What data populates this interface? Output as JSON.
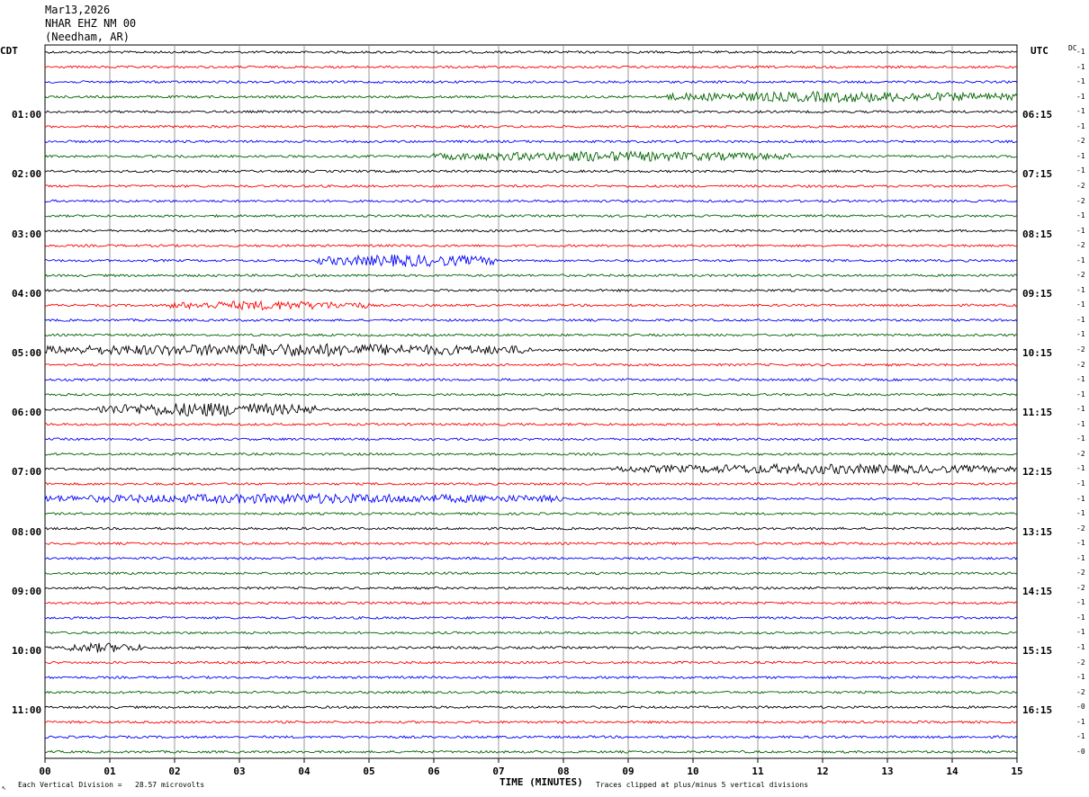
{
  "header": {
    "date": "Mar13,2026",
    "station": "NHAR EHZ NM 00",
    "location": "(Needham, AR)"
  },
  "left_zone": "CDT",
  "right_zone": "UTC",
  "dc_label": "DC",
  "footer": {
    "left_mark": "↖",
    "scale_note": "Each Vertical Division =   28.57 microvolts",
    "xlabel": "TIME (MINUTES)",
    "clip_note": "Traces clipped at plus/minus 5 vertical divisions"
  },
  "colors": {
    "trace_cycle": [
      "#000000",
      "#ff0000",
      "#0000ff",
      "#006400"
    ],
    "grid": "#808080"
  },
  "chart_data": {
    "type": "line",
    "title": "Mar13,2026",
    "xlabel": "TIME (MINUTES)",
    "xlim": [
      0,
      15
    ],
    "x_ticks": [
      "00",
      "01",
      "02",
      "03",
      "04",
      "05",
      "06",
      "07",
      "08",
      "09",
      "10",
      "11",
      "12",
      "13",
      "14",
      "15"
    ],
    "trace_count": 48,
    "minutes_per_trace": 15,
    "start_cdt": "00:15",
    "left_time_labels": [
      {
        "trace": 4,
        "text": "01:00"
      },
      {
        "trace": 8,
        "text": "02:00"
      },
      {
        "trace": 12,
        "text": "03:00"
      },
      {
        "trace": 16,
        "text": "04:00"
      },
      {
        "trace": 20,
        "text": "05:00"
      },
      {
        "trace": 24,
        "text": "06:00"
      },
      {
        "trace": 28,
        "text": "07:00"
      },
      {
        "trace": 32,
        "text": "08:00"
      },
      {
        "trace": 36,
        "text": "09:00"
      },
      {
        "trace": 40,
        "text": "10:00"
      },
      {
        "trace": 44,
        "text": "11:00"
      }
    ],
    "right_time_labels": [
      {
        "trace": 4,
        "text": "06:15"
      },
      {
        "trace": 8,
        "text": "07:15"
      },
      {
        "trace": 12,
        "text": "08:15"
      },
      {
        "trace": 16,
        "text": "09:15"
      },
      {
        "trace": 20,
        "text": "10:15"
      },
      {
        "trace": 24,
        "text": "11:15"
      },
      {
        "trace": 28,
        "text": "12:15"
      },
      {
        "trace": 32,
        "text": "13:15"
      },
      {
        "trace": 36,
        "text": "14:15"
      },
      {
        "trace": 40,
        "text": "15:15"
      },
      {
        "trace": 44,
        "text": "16:15"
      }
    ],
    "dc_offsets": [
      "-1",
      "-1",
      "-1",
      "-1",
      "-1",
      "-1",
      "-2",
      "-1",
      "-1",
      "-2",
      "-2",
      "-1",
      "-1",
      "-2",
      "-1",
      "-2",
      "-1",
      "-1",
      "-1",
      "-1",
      "-2",
      "-2",
      "-1",
      "-1",
      "-1",
      "-1",
      "-1",
      "-2",
      "-1",
      "-1",
      "-1",
      "-1",
      "-2",
      "-1",
      "-1",
      "-2",
      "-2",
      "-1",
      "-1",
      "-1",
      "-1",
      "-2",
      "-1",
      "-2",
      "-0",
      "-1",
      "-1",
      "-0"
    ],
    "ylabel": "",
    "scale_microvolts_per_division": 28.57,
    "clip_divisions": 5,
    "activity_bursts": [
      {
        "trace": 3,
        "from_min": 9.5,
        "to_min": 15,
        "amp": 2.2
      },
      {
        "trace": 7,
        "from_min": 6.0,
        "to_min": 11.5,
        "amp": 2.0
      },
      {
        "trace": 14,
        "from_min": 4.2,
        "to_min": 7.0,
        "amp": 2.6
      },
      {
        "trace": 17,
        "from_min": 1.9,
        "to_min": 5.0,
        "amp": 1.8
      },
      {
        "trace": 20,
        "from_min": 0.0,
        "to_min": 7.5,
        "amp": 2.8
      },
      {
        "trace": 24,
        "from_min": 0.8,
        "to_min": 4.2,
        "amp": 3.2
      },
      {
        "trace": 28,
        "from_min": 8.8,
        "to_min": 15,
        "amp": 2.0
      },
      {
        "trace": 30,
        "from_min": 0.0,
        "to_min": 8.0,
        "amp": 2.0
      },
      {
        "trace": 40,
        "from_min": 0.3,
        "to_min": 1.5,
        "amp": 2.0
      }
    ]
  }
}
